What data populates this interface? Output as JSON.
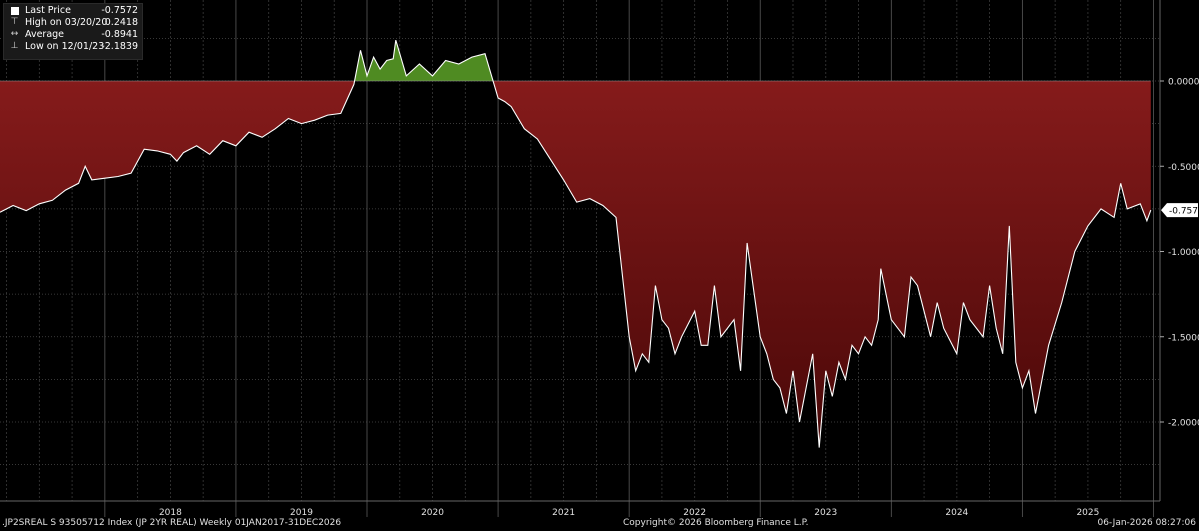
{
  "legend": {
    "last_label": "Last Price",
    "last_value": "-0.7572",
    "high_label": "High on 03/20/20",
    "high_value": "0.2418",
    "avg_label": "Average",
    "avg_value": "-0.8941",
    "low_label": "Low on 12/01/23",
    "low_value": "-2.1839"
  },
  "footer": {
    "series": ".JP2SREAL S 93505712 Index (JP 2YR REAL) Weekly 01JAN2017-31DEC2026",
    "copyright": "Copyright© 2026 Bloomberg Finance L.P.",
    "timestamp": "06-Jan-2026 08:27:06"
  },
  "colors": {
    "positive_fill": "#4f8b22",
    "negative_fill_top": "#8c1d1d",
    "negative_fill_bottom": "#4a0808",
    "line": "#ffffff",
    "grid": "#4a4a4a"
  },
  "chart_data": {
    "type": "area",
    "title": "",
    "xlabel": "",
    "ylabel": "",
    "x_tick_labels": [
      "2018",
      "2019",
      "2020",
      "2021",
      "2022",
      "2023",
      "2024",
      "2025"
    ],
    "y_tick_labels": [
      "0.0000",
      "-0.5000",
      "-1.0000",
      "-1.5000",
      "-2.0000"
    ],
    "yticks": [
      0,
      -0.5,
      -1.0,
      -1.5,
      -2.0
    ],
    "xlim": [
      2017.2,
      2026.05
    ],
    "ylim": [
      -2.3,
      0.25
    ],
    "last_value_label": "-0.7572",
    "grid": true,
    "series": [
      {
        "x": [
          2017.2,
          2017.3,
          2017.4,
          2017.5,
          2017.6,
          2017.7,
          2017.8,
          2017.85,
          2017.9,
          2018.0,
          2018.1,
          2018.2,
          2018.3,
          2018.4,
          2018.5,
          2018.55,
          2018.6,
          2018.7,
          2018.8,
          2018.9,
          2019.0,
          2019.1,
          2019.2,
          2019.3,
          2019.4,
          2019.5,
          2019.6,
          2019.7,
          2019.8,
          2019.9,
          2019.95,
          2020.0,
          2020.05,
          2020.1,
          2020.15,
          2020.2,
          2020.22,
          2020.3,
          2020.4,
          2020.5,
          2020.6,
          2020.7,
          2020.8,
          2020.9,
          2021.0,
          2021.05,
          2021.1,
          2021.2,
          2021.3,
          2021.4,
          2021.5,
          2021.6,
          2021.7,
          2021.8,
          2021.9,
          2022.0,
          2022.05,
          2022.1,
          2022.15,
          2022.2,
          2022.25,
          2022.3,
          2022.35,
          2022.4,
          2022.5,
          2022.55,
          2022.6,
          2022.65,
          2022.7,
          2022.8,
          2022.85,
          2022.9,
          2023.0,
          2023.05,
          2023.1,
          2023.15,
          2023.2,
          2023.25,
          2023.3,
          2023.4,
          2023.45,
          2023.5,
          2023.55,
          2023.6,
          2023.65,
          2023.7,
          2023.75,
          2023.8,
          2023.85,
          2023.9,
          2023.92,
          2024.0,
          2024.1,
          2024.15,
          2024.2,
          2024.3,
          2024.35,
          2024.4,
          2024.5,
          2024.55,
          2024.6,
          2024.7,
          2024.75,
          2024.8,
          2024.85,
          2024.9,
          2024.95,
          2025.0,
          2025.05,
          2025.1,
          2025.2,
          2025.3,
          2025.4,
          2025.5,
          2025.6,
          2025.7,
          2025.75,
          2025.8,
          2025.9,
          2025.95,
          2025.98
        ],
        "y": [
          -0.77,
          -0.73,
          -0.76,
          -0.72,
          -0.7,
          -0.64,
          -0.6,
          -0.5,
          -0.58,
          -0.57,
          -0.56,
          -0.54,
          -0.4,
          -0.41,
          -0.43,
          -0.47,
          -0.42,
          -0.38,
          -0.43,
          -0.35,
          -0.38,
          -0.3,
          -0.33,
          -0.28,
          -0.22,
          -0.25,
          -0.23,
          -0.2,
          -0.19,
          -0.02,
          0.18,
          0.03,
          0.14,
          0.07,
          0.12,
          0.13,
          0.24,
          0.03,
          0.1,
          0.03,
          0.12,
          0.1,
          0.14,
          0.16,
          -0.1,
          -0.12,
          -0.15,
          -0.28,
          -0.34,
          -0.46,
          -0.58,
          -0.71,
          -0.69,
          -0.73,
          -0.8,
          -1.5,
          -1.7,
          -1.6,
          -1.65,
          -1.2,
          -1.4,
          -1.45,
          -1.6,
          -1.5,
          -1.35,
          -1.55,
          -1.55,
          -1.2,
          -1.5,
          -1.4,
          -1.7,
          -0.95,
          -1.5,
          -1.6,
          -1.75,
          -1.8,
          -1.95,
          -1.7,
          -2.0,
          -1.6,
          -2.15,
          -1.7,
          -1.85,
          -1.65,
          -1.75,
          -1.55,
          -1.6,
          -1.5,
          -1.55,
          -1.4,
          -1.1,
          -1.4,
          -1.5,
          -1.15,
          -1.2,
          -1.5,
          -1.3,
          -1.45,
          -1.6,
          -1.3,
          -1.4,
          -1.5,
          -1.2,
          -1.45,
          -1.6,
          -0.85,
          -1.65,
          -1.8,
          -1.7,
          -1.95,
          -1.55,
          -1.3,
          -1.0,
          -0.85,
          -0.75,
          -0.8,
          -0.6,
          -0.75,
          -0.72,
          -0.82,
          -0.7572
        ]
      }
    ]
  }
}
